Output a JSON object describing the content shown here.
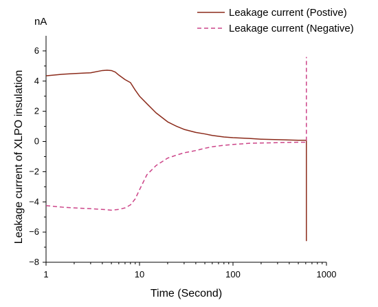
{
  "chart_data": {
    "type": "line",
    "title": "",
    "xlabel": "Time (Second)",
    "ylabel": "Leakage current of XLPO insulation",
    "y_unit": "nA",
    "x_scale": "log",
    "xlim": [
      1,
      1000
    ],
    "ylim": [
      -8,
      7
    ],
    "x_ticks": [
      1,
      10,
      100,
      1000
    ],
    "x_tick_labels": [
      "1",
      "10",
      "100",
      "1000"
    ],
    "y_ticks": [
      -8,
      -6,
      -4,
      -2,
      0,
      2,
      4,
      6
    ],
    "y_tick_labels": [
      "−8",
      "−6",
      "−4",
      "−2",
      "0",
      "2",
      "4",
      "6"
    ],
    "grid": false,
    "legend_position": "top-right",
    "series": [
      {
        "name": "Leakage current (Postive)",
        "color": "#8b2a1a",
        "style": "solid",
        "x": [
          1,
          1.5,
          2,
          3,
          4,
          4.5,
          5,
          5.5,
          6,
          7,
          8,
          9,
          10,
          12,
          15,
          20,
          25,
          30,
          40,
          50,
          60,
          80,
          100,
          150,
          200,
          300,
          400,
          500,
          600,
          610,
          610
        ],
        "y": [
          4.35,
          4.45,
          4.5,
          4.55,
          4.7,
          4.72,
          4.7,
          4.6,
          4.4,
          4.1,
          3.9,
          3.4,
          3.0,
          2.5,
          1.9,
          1.3,
          1.0,
          0.8,
          0.6,
          0.5,
          0.4,
          0.3,
          0.25,
          0.2,
          0.15,
          0.12,
          0.1,
          0.08,
          0.08,
          0.08,
          -6.6
        ]
      },
      {
        "name": "Leakage current (Negative)",
        "color": "#cc4488",
        "style": "dashed",
        "x": [
          1,
          1.5,
          2,
          3,
          4,
          5,
          6,
          7,
          8,
          9,
          10,
          12,
          15,
          20,
          25,
          30,
          40,
          50,
          60,
          80,
          100,
          150,
          200,
          300,
          400,
          500,
          600,
          610,
          610
        ],
        "y": [
          -4.25,
          -4.35,
          -4.4,
          -4.45,
          -4.5,
          -4.55,
          -4.5,
          -4.4,
          -4.2,
          -3.8,
          -3.2,
          -2.2,
          -1.6,
          -1.1,
          -0.9,
          -0.75,
          -0.6,
          -0.45,
          -0.35,
          -0.25,
          -0.2,
          -0.12,
          -0.1,
          -0.08,
          -0.06,
          -0.05,
          -0.05,
          -0.05,
          5.6
        ]
      }
    ]
  }
}
